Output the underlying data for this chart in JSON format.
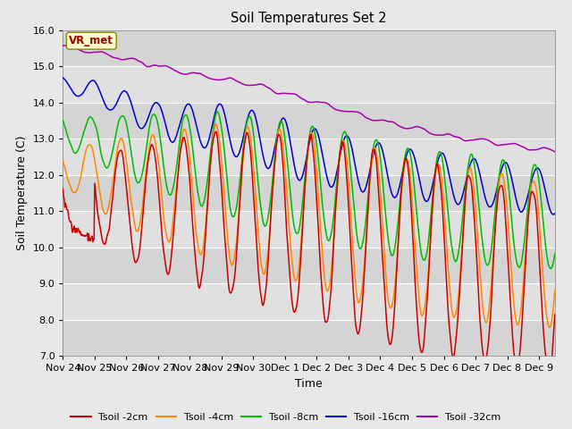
{
  "title": "Soil Temperatures Set 2",
  "xlabel": "Time",
  "ylabel": "Soil Temperature (C)",
  "ylim": [
    7.0,
    16.0
  ],
  "yticks": [
    7.0,
    8.0,
    9.0,
    10.0,
    11.0,
    12.0,
    13.0,
    14.0,
    15.0,
    16.0
  ],
  "xtick_labels": [
    "Nov 24",
    "Nov 25",
    "Nov 26",
    "Nov 27",
    "Nov 28",
    "Nov 29",
    "Nov 30",
    "Dec 1",
    "Dec 2",
    "Dec 3",
    "Dec 4",
    "Dec 5",
    "Dec 6",
    "Dec 7",
    "Dec 8",
    "Dec 9"
  ],
  "colors": {
    "Tsoil -2cm": "#cc0000",
    "Tsoil -4cm": "#ff8800",
    "Tsoil -8cm": "#00bb00",
    "Tsoil -16cm": "#0000cc",
    "Tsoil -32cm": "#aa00aa"
  },
  "bg_color": "#e8e8e8",
  "vr_met_label": "VR_met",
  "legend_labels": [
    "Tsoil -2cm",
    "Tsoil -4cm",
    "Tsoil -8cm",
    "Tsoil -16cm",
    "Tsoil -32cm"
  ]
}
